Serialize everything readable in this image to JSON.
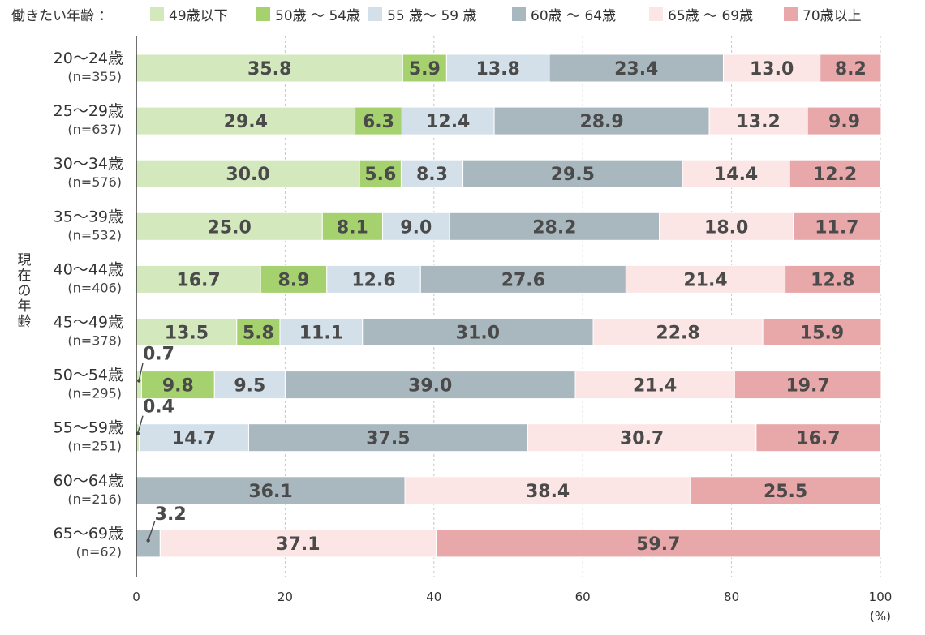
{
  "chart_data": {
    "type": "bar",
    "orientation": "horizontal",
    "stacked": "100%",
    "legend_title": "働きたい年齢 ：",
    "legend_position": "top",
    "ylabel": "現在の年齢",
    "xlabel": "(%)",
    "xlim": [
      0,
      100
    ],
    "xticks": [
      "0",
      "20",
      "40",
      "60",
      "80",
      "100"
    ],
    "grid": "vertical-dashed",
    "categories": [
      "20～24歳",
      "25～29歳",
      "30～34歳",
      "35～39歳",
      "40～44歳",
      "45～49歳",
      "50～54歳",
      "55～59歳",
      "60～64歳",
      "65～69歳"
    ],
    "sample_sizes": [
      "(n=355)",
      "(n=637)",
      "(n=576)",
      "(n=532)",
      "(n=406)",
      "(n=378)",
      "(n=295)",
      "(n=251)",
      "(n=216)",
      "(n=62)"
    ],
    "series": [
      {
        "name": "49歳以下",
        "color": "#d3e8bc",
        "values": [
          35.8,
          29.4,
          30.0,
          25.0,
          16.7,
          13.5,
          0.7,
          0.4,
          null,
          null
        ]
      },
      {
        "name": "50歳 ～ 54歳",
        "color": "#a5d16f",
        "values": [
          5.9,
          6.3,
          5.6,
          8.1,
          8.9,
          5.8,
          9.8,
          null,
          null,
          null
        ]
      },
      {
        "name": "55 歳～ 59 歳",
        "color": "#d3e0ea",
        "values": [
          13.8,
          12.4,
          8.3,
          9.0,
          12.6,
          11.1,
          9.5,
          14.7,
          null,
          null
        ]
      },
      {
        "name": "60歳 ～ 64歳",
        "color": "#a9b7bf",
        "values": [
          23.4,
          28.9,
          29.5,
          28.2,
          27.6,
          31.0,
          39.0,
          37.5,
          36.1,
          3.2
        ]
      },
      {
        "name": "65歳 ～ 69歳",
        "color": "#fbe5e5",
        "values": [
          13.0,
          13.2,
          14.4,
          18.0,
          21.4,
          22.8,
          21.4,
          30.7,
          38.4,
          37.1
        ]
      },
      {
        "name": "70歳以上",
        "color": "#e8a7a8",
        "values": [
          8.2,
          9.9,
          12.2,
          11.7,
          12.8,
          15.9,
          19.7,
          16.7,
          25.5,
          59.7
        ]
      }
    ]
  }
}
